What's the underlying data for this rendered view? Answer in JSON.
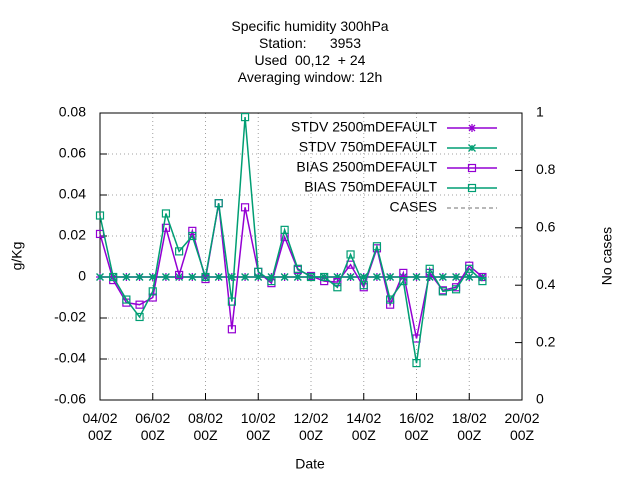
{
  "chart_data": {
    "type": "line",
    "title": "Specific humidity 300hPa\nStation:      3953\nUsed  00,12  + 24\nAveraging window: 12h",
    "x_label": "Date",
    "y_label": "g/Kg",
    "y2_label": "No cases",
    "categories": [
      "04/02\n00Z",
      null,
      null,
      null,
      "06/02\n00Z",
      null,
      null,
      null,
      "08/02\n00Z",
      null,
      null,
      null,
      "10/02\n00Z",
      null,
      null,
      null,
      "12/02\n00Z",
      null,
      null,
      null,
      "14/02\n00Z",
      null,
      null,
      null,
      "16/02\n00Z",
      null,
      null,
      null,
      "18/02\n00Z",
      null,
      null,
      null,
      "20/02\n00Z"
    ],
    "series": [
      {
        "name": "STDV 2500mDEFAULT",
        "color": "#9400d3",
        "marker": "asterisk",
        "values": [
          0,
          0,
          0,
          0,
          0,
          0,
          0,
          0,
          0,
          0,
          0,
          0,
          0,
          0,
          0,
          0,
          0,
          0,
          0,
          0,
          0,
          0,
          0,
          0,
          0,
          0,
          0,
          0,
          0,
          0,
          null,
          null,
          null
        ]
      },
      {
        "name": "STDV 750mDEFAULT",
        "color": "#009e73",
        "marker": "star",
        "values": [
          0,
          0,
          0,
          0,
          0,
          0,
          0,
          0,
          0,
          0,
          0,
          0,
          0,
          0,
          0,
          0,
          0,
          0,
          0,
          0,
          0,
          0,
          0,
          0,
          0,
          0,
          0,
          0,
          0,
          0,
          null,
          null,
          null
        ]
      },
      {
        "name": "BIAS 2500mDEFAULT",
        "color": "#9400d3",
        "marker": "square",
        "values": [
          0.021,
          -0.0015,
          -0.0125,
          -0.0135,
          -0.01,
          0.024,
          0.001,
          0.0225,
          -0.001,
          0.036,
          -0.0255,
          0.034,
          0.0025,
          -0.003,
          0.0195,
          0.0035,
          0.0005,
          -0.002,
          -0.0025,
          0.006,
          -0.005,
          0.014,
          -0.0135,
          0.002,
          -0.03,
          0.002,
          -0.0065,
          -0.005,
          0.0055,
          0,
          null,
          null,
          null
        ]
      },
      {
        "name": "BIAS 750mDEFAULT",
        "color": "#009e73",
        "marker": "square",
        "values": [
          0.03,
          0,
          -0.011,
          -0.0195,
          -0.007,
          0.031,
          0.0125,
          0.02,
          0,
          0.036,
          -0.012,
          0.078,
          0.0025,
          -0.002,
          0.023,
          0.004,
          0,
          0,
          -0.005,
          0.011,
          -0.004,
          0.015,
          -0.011,
          -0.002,
          -0.042,
          0.004,
          -0.007,
          -0.006,
          0.004,
          -0.002,
          null,
          null,
          null
        ]
      },
      {
        "name": "CASES",
        "color": "#a0a0a0",
        "axis": "y2",
        "dashed": true,
        "values": [
          null,
          null,
          null,
          null,
          null,
          null,
          null,
          null,
          null,
          null,
          null,
          null,
          null,
          null,
          null,
          null,
          null,
          null,
          null,
          null,
          null,
          null,
          null,
          null,
          null,
          null,
          null,
          null,
          null,
          null,
          null,
          null,
          null
        ]
      }
    ],
    "ylim": [
      -0.06,
      0.08
    ],
    "yticks": [
      -0.06,
      -0.04,
      -0.02,
      0,
      0.02,
      0.04,
      0.06,
      0.08
    ],
    "y2lim": [
      0,
      1
    ],
    "y2ticks": [
      0,
      0.2,
      0.4,
      0.6,
      0.8,
      1
    ],
    "grid": true,
    "legend": "top-right"
  }
}
